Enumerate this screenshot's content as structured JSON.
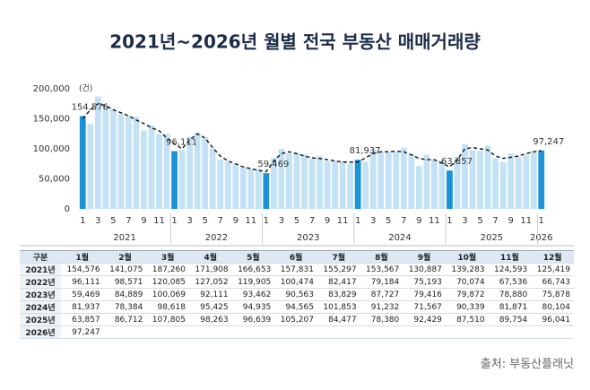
{
  "chart_data": {
    "type": "bar",
    "title": "2021년~2026년 월별 전국 부동산 매매거래량",
    "unit_label": "(건)",
    "categories": [
      "1",
      null,
      "3",
      null,
      "5",
      null,
      "7",
      null,
      "9",
      null,
      "11",
      null,
      "1",
      null,
      "3",
      null,
      "5",
      null,
      "7",
      null,
      "9",
      null,
      "11",
      null,
      "1",
      null,
      "3",
      null,
      "5",
      null,
      "7",
      null,
      "9",
      null,
      "11",
      null,
      "1",
      null,
      "3",
      null,
      "5",
      null,
      "7",
      null,
      "9",
      null,
      "11",
      null,
      "1",
      null,
      "3",
      null,
      "5",
      null,
      "7",
      null,
      "9",
      null,
      "11",
      null,
      "1"
    ],
    "years": [
      "2021",
      "2022",
      "2023",
      "2024",
      "2025",
      "2026"
    ],
    "values": [
      154576,
      141075,
      187260,
      171908,
      166653,
      157831,
      155297,
      153567,
      130887,
      139283,
      124593,
      125419,
      96111,
      98571,
      120085,
      127052,
      119905,
      100474,
      82417,
      79184,
      75193,
      70074,
      67536,
      66743,
      59469,
      84889,
      100069,
      92111,
      93462,
      90563,
      83829,
      87727,
      79416,
      79872,
      78880,
      75878,
      81937,
      78384,
      98618,
      95425,
      94935,
      94565,
      101853,
      91232,
      71567,
      90339,
      81871,
      80104,
      63857,
      86712,
      107805,
      98263,
      96639,
      105207,
      84477,
      78380,
      92429,
      87510,
      89754,
      96041,
      97247
    ],
    "value_labels": [
      "154,576",
      null,
      null,
      null,
      null,
      null,
      null,
      null,
      null,
      null,
      null,
      null,
      "96,111",
      null,
      null,
      null,
      null,
      null,
      null,
      null,
      null,
      null,
      null,
      null,
      "59,469",
      null,
      null,
      null,
      null,
      null,
      null,
      null,
      null,
      null,
      null,
      null,
      "81,937",
      null,
      null,
      null,
      null,
      null,
      null,
      null,
      null,
      null,
      null,
      null,
      "63,857",
      null,
      null,
      null,
      null,
      null,
      null,
      null,
      null,
      null,
      null,
      null,
      "97,247"
    ],
    "color": "#c3e2f6",
    "highlight_color": "#1b93d6",
    "trend": {
      "color": "#111111",
      "dashed": true,
      "values": [
        150000,
        165000,
        175000,
        172000,
        165000,
        160000,
        155000,
        148000,
        142000,
        135000,
        130000,
        118000,
        108000,
        100000,
        115000,
        125000,
        118000,
        102000,
        88000,
        80000,
        75000,
        70000,
        67000,
        64000,
        62000,
        80000,
        92000,
        95000,
        92000,
        88000,
        85000,
        84000,
        82000,
        80000,
        78000,
        78000,
        78000,
        85000,
        92000,
        95000,
        95000,
        96000,
        95000,
        90000,
        84000,
        82000,
        82000,
        76000,
        70000,
        82000,
        100000,
        102000,
        100000,
        98000,
        88000,
        84000,
        86000,
        88000,
        92000,
        95000,
        97000
      ]
    },
    "ylim": [
      0,
      200000
    ],
    "yticks": [
      0,
      {
        "value": 50000,
        "label": "50,000"
      },
      {
        "value": 100000,
        "label": "100,000"
      },
      {
        "value": 150000,
        "label": "150,000"
      },
      {
        "value": 200000,
        "label": "200,000"
      }
    ],
    "grid": false
  },
  "table": {
    "header": [
      "구분",
      "1월",
      "2월",
      "3월",
      "4월",
      "5월",
      "6월",
      "7월",
      "8월",
      "9월",
      "10월",
      "11월",
      "12월"
    ],
    "rows": [
      [
        "2021년",
        "154,576",
        "141,075",
        "187,260",
        "171,908",
        "166,653",
        "157,831",
        "155,297",
        "153,567",
        "130,887",
        "139,283",
        "124,593",
        "125,419"
      ],
      [
        "2022년",
        "96,111",
        "98,571",
        "120,085",
        "127,052",
        "119,905",
        "100,474",
        "82,417",
        "79,184",
        "75,193",
        "70,074",
        "67,536",
        "66,743"
      ],
      [
        "2023년",
        "59,469",
        "84,889",
        "100,069",
        "92,111",
        "93,462",
        "90,563",
        "83,829",
        "87,727",
        "79,416",
        "79,872",
        "78,880",
        "75,878"
      ],
      [
        "2024년",
        "81,937",
        "78,384",
        "98,618",
        "95,425",
        "94,935",
        "94,565",
        "101,853",
        "91,232",
        "71,567",
        "90,339",
        "81,871",
        "80,104"
      ],
      [
        "2025년",
        "63,857",
        "86,712",
        "107,805",
        "98,263",
        "96,639",
        "105,207",
        "84,477",
        "78,380",
        "92,429",
        "87,510",
        "89,754",
        "96,041"
      ],
      [
        "2026년",
        "97,247"
      ]
    ]
  },
  "source": "출처: 부동산플래닛"
}
